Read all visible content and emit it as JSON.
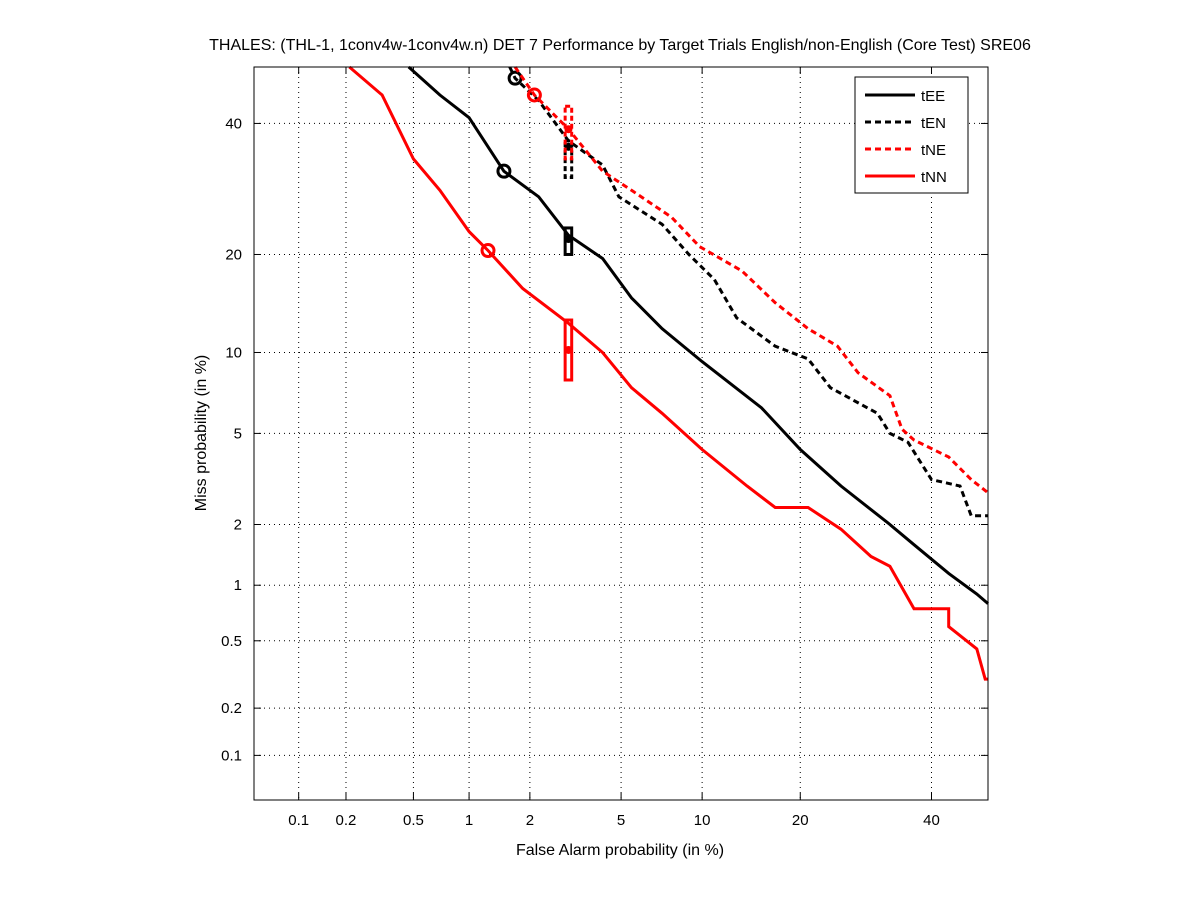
{
  "chart_data": {
    "type": "line",
    "title": "THALES: (THL-1, 1conv4w-1conv4w.n) DET 7 Performance by Target Trials English/non-English (Core Test) SRE06",
    "xlabel": "False Alarm probability (in %)",
    "ylabel": "Miss probability (in %)",
    "scale": "normal-deviate",
    "xlim": [
      0.05,
      50
    ],
    "ylim": [
      0.05,
      50
    ],
    "grid": true,
    "legend_position": "top-right",
    "xticks": [
      0.1,
      0.2,
      0.5,
      1,
      2,
      5,
      10,
      20,
      40
    ],
    "xtick_labels": [
      "0.1",
      "0.2",
      "0.5",
      "1",
      "2",
      "5",
      "10",
      "20",
      "40"
    ],
    "yticks": [
      0.1,
      0.2,
      0.5,
      1,
      2,
      5,
      10,
      20,
      40
    ],
    "ytick_labels": [
      "0.1",
      "0.2",
      "0.5",
      "1",
      "2",
      "5",
      "10",
      "20",
      "40"
    ],
    "series": [
      {
        "name": "tEE",
        "color": "#000000",
        "dashed": false,
        "x": [
          0.47,
          0.7,
          1.0,
          1.5,
          2.2,
          3.0,
          4.2,
          5.5,
          7.2,
          10,
          15.5,
          20,
          25.5,
          33,
          37,
          43,
          48,
          50.5
        ],
        "y": [
          50,
          45,
          41,
          32,
          28,
          22.5,
          19.5,
          15,
          12,
          9.3,
          6.3,
          4.3,
          3,
          2,
          1.6,
          1.15,
          0.9,
          0.8
        ],
        "min_dcf": [
          1.5,
          32
        ],
        "act_dcf": [
          3.0,
          22
        ],
        "act_box": [
          2.9,
          3.1,
          20,
          23.5
        ]
      },
      {
        "name": "tEN",
        "color": "#000000",
        "dashed": true,
        "x": [
          1.6,
          1.7,
          2.2,
          3.0,
          4.2,
          4.9,
          7.2,
          9,
          11,
          13,
          17,
          21,
          24,
          31,
          33,
          36,
          40,
          45,
          47,
          50.5
        ],
        "y": [
          50,
          48,
          44,
          37,
          33,
          28,
          24,
          20,
          17,
          13,
          10.5,
          9.5,
          7.5,
          6,
          5,
          4.6,
          3.2,
          3,
          2.2,
          2.2
        ],
        "min_dcf": [
          1.7,
          48
        ],
        "act_dcf": [
          3.0,
          36
        ],
        "act_box": [
          2.9,
          3.1,
          31,
          37
        ]
      },
      {
        "name": "tNE",
        "color": "#ff0000",
        "dashed": true,
        "x": [
          1.7,
          2.1,
          3.0,
          4.2,
          5.5,
          7.8,
          9.8,
          13.5,
          17,
          21,
          25,
          28,
          33,
          35,
          37,
          43,
          47,
          50.5
        ],
        "y": [
          50,
          45,
          39,
          32,
          29,
          25,
          21,
          18,
          14.5,
          12,
          10.5,
          8.5,
          7,
          5.2,
          4.7,
          4,
          3.2,
          2.8
        ],
        "min_dcf": [
          2.1,
          45
        ],
        "act_dcf": [
          3.0,
          39
        ],
        "act_box": [
          2.9,
          3.1,
          34,
          43
        ]
      },
      {
        "name": "tNN",
        "color": "#ff0000",
        "dashed": false,
        "x": [
          0.21,
          0.33,
          0.5,
          0.7,
          1.0,
          1.25,
          1.85,
          3.0,
          4.2,
          5.5,
          7.2,
          10,
          14,
          17,
          21,
          25.5,
          30,
          33,
          37,
          43,
          43,
          48,
          49.5,
          50.5
        ],
        "y": [
          50,
          45,
          34,
          29,
          23,
          20.5,
          16,
          12.5,
          10,
          7.5,
          6,
          4.3,
          3,
          2.4,
          2.4,
          1.9,
          1.4,
          1.25,
          0.75,
          0.75,
          0.6,
          0.45,
          0.3,
          0.3
        ],
        "min_dcf": [
          1.25,
          20.5
        ],
        "act_dcf": [
          3.0,
          10.2
        ],
        "act_box": [
          2.9,
          3.1,
          8,
          12.8
        ]
      }
    ]
  }
}
